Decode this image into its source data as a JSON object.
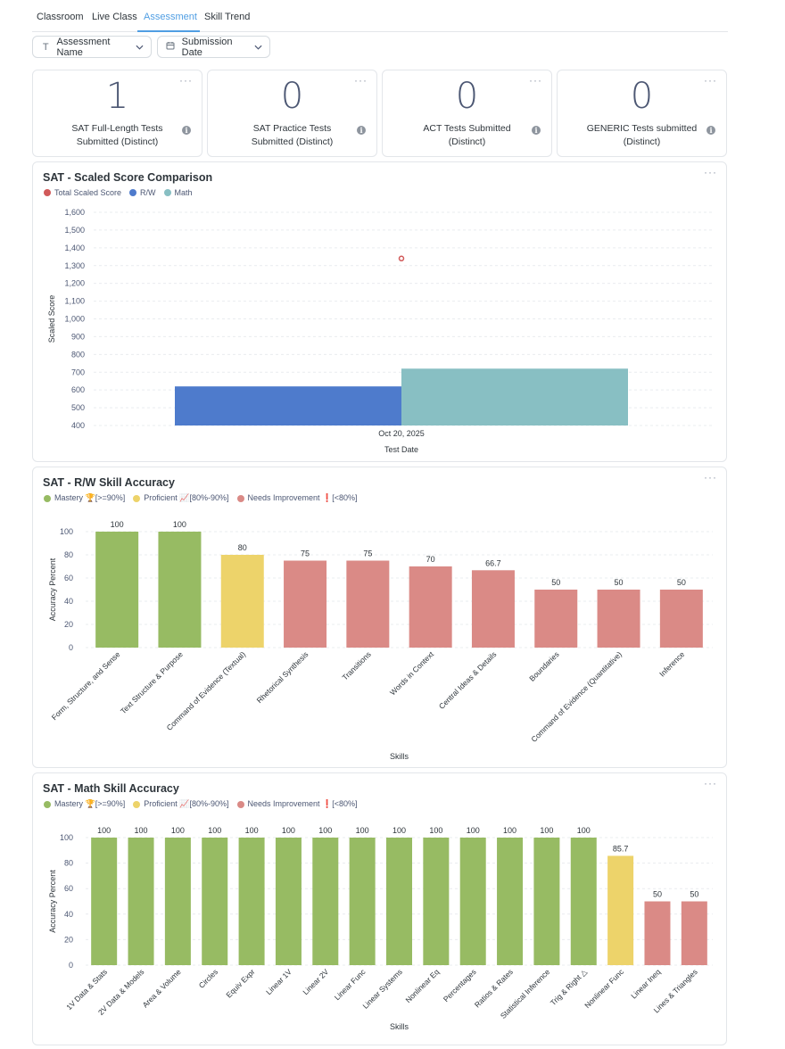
{
  "tabs": [
    {
      "label": "Classroom",
      "active": false
    },
    {
      "label": "Live Class",
      "active": false
    },
    {
      "label": "Assessment",
      "active": true
    },
    {
      "label": "Skill Trend",
      "active": false
    }
  ],
  "filters": {
    "assessment_name": {
      "label": "Assessment Name",
      "icon": "text-type-icon"
    },
    "submission_date": {
      "label": "Submission Date",
      "icon": "calendar-icon"
    }
  },
  "kpis": [
    {
      "value": "1",
      "label": "SAT Full-Length Tests Submitted (Distinct)"
    },
    {
      "value": "0",
      "label": "SAT Practice Tests Submitted (Distinct)"
    },
    {
      "value": "0",
      "label": "ACT Tests Submitted (Distinct)"
    },
    {
      "value": "0",
      "label": "GENERIC Tests submitted (Distinct)"
    }
  ],
  "menu_glyph": "···",
  "charts": {
    "scaled": {
      "title": "SAT - Scaled Score Comparison",
      "legend": [
        {
          "label": "Total Scaled Score",
          "color": "#d15a5a"
        },
        {
          "label": "R/W",
          "color": "#4e7bcc"
        },
        {
          "label": "Math",
          "color": "#88bfc3"
        }
      ]
    },
    "rw": {
      "title": "SAT - R/W Skill Accuracy",
      "legend": [
        {
          "label": "Mastery 🏆[>=90%]",
          "color": "#97bb63"
        },
        {
          "label": "Proficient 📈[80%-90%]",
          "color": "#edd36a"
        },
        {
          "label": "Needs Improvement ❗[<80%]",
          "color": "#da8a86"
        }
      ]
    },
    "math": {
      "title": "SAT - Math Skill Accuracy",
      "legend": [
        {
          "label": "Mastery 🏆[>=90%]",
          "color": "#97bb63"
        },
        {
          "label": "Proficient 📈[80%-90%]",
          "color": "#edd36a"
        },
        {
          "label": "Needs Improvement ❗[<80%]",
          "color": "#da8a86"
        }
      ]
    }
  },
  "chart_data": [
    {
      "id": "scaled",
      "type": "bar",
      "title": "SAT - Scaled Score Comparison",
      "xlabel": "Test Date",
      "ylabel": "Scaled Score",
      "categories": [
        "Oct 20, 2025"
      ],
      "ylim": [
        400,
        1600
      ],
      "yticks": [
        400,
        500,
        600,
        700,
        800,
        900,
        1000,
        1100,
        1200,
        1300,
        1400,
        1500,
        1600
      ],
      "ytick_labels": [
        "400",
        "500",
        "600",
        "700",
        "800",
        "900",
        "1,000",
        "1,100",
        "1,200",
        "1,300",
        "1,400",
        "1,500",
        "1,600"
      ],
      "series": [
        {
          "name": "R/W",
          "type": "bar",
          "color": "#4e7bcc",
          "values": [
            620
          ]
        },
        {
          "name": "Math",
          "type": "bar",
          "color": "#88bfc3",
          "values": [
            720
          ]
        },
        {
          "name": "Total Scaled Score",
          "type": "point",
          "color": "#d15a5a",
          "values": [
            1340
          ]
        }
      ]
    },
    {
      "id": "rw",
      "type": "bar",
      "title": "SAT - R/W Skill Accuracy",
      "xlabel": "Skills",
      "ylabel": "Accuracy Percent",
      "ylim": [
        0,
        100
      ],
      "yticks": [
        0,
        20,
        40,
        60,
        80,
        100
      ],
      "categories": [
        "Form, Structure, and Sense",
        "Text Structure & Purpose",
        "Command of Evidence (Textual)",
        "Rhetorical Synthesis",
        "Transitions",
        "Words in Context",
        "Central Ideas & Details",
        "Boundaries",
        "Command of Evidence (Quantitative)",
        "Inference"
      ],
      "values": [
        100,
        100,
        80,
        75,
        75,
        70,
        66.7,
        50,
        50,
        50
      ],
      "value_labels": [
        "100",
        "100",
        "80",
        "75",
        "75",
        "70",
        "66.7",
        "50",
        "50",
        "50"
      ],
      "levels": [
        "mastery",
        "mastery",
        "proficient",
        "needs",
        "needs",
        "needs",
        "needs",
        "needs",
        "needs",
        "needs"
      ]
    },
    {
      "id": "math",
      "type": "bar",
      "title": "SAT - Math Skill Accuracy",
      "xlabel": "Skills",
      "ylabel": "Accuracy Percent",
      "ylim": [
        0,
        100
      ],
      "yticks": [
        0,
        20,
        40,
        60,
        80,
        100
      ],
      "categories": [
        "1V Data & Stats",
        "2V Data & Models",
        "Area & Volume",
        "Circles",
        "Equiv Expr",
        "Linear 1V",
        "Linear 2V",
        "Linear Func",
        "Linear Systems",
        "Nonlinear Eq",
        "Percentages",
        "Ratios & Rates",
        "Statistical Inference",
        "Trig & Right △",
        "Nonlinear Func",
        "Linear Ineq",
        "Lines & Triangles"
      ],
      "values": [
        100,
        100,
        100,
        100,
        100,
        100,
        100,
        100,
        100,
        100,
        100,
        100,
        100,
        100,
        85.7,
        50,
        50
      ],
      "value_labels": [
        "100",
        "100",
        "100",
        "100",
        "100",
        "100",
        "100",
        "100",
        "100",
        "100",
        "100",
        "100",
        "100",
        "100",
        "85.7",
        "50",
        "50"
      ],
      "levels": [
        "mastery",
        "mastery",
        "mastery",
        "mastery",
        "mastery",
        "mastery",
        "mastery",
        "mastery",
        "mastery",
        "mastery",
        "mastery",
        "mastery",
        "mastery",
        "mastery",
        "proficient",
        "needs",
        "needs"
      ]
    }
  ],
  "level_colors": {
    "mastery": "#97bb63",
    "proficient": "#edd36a",
    "needs": "#da8a86"
  }
}
